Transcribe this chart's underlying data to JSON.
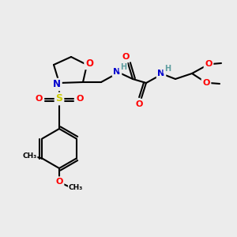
{
  "bg_color": "#ececec",
  "bond_color": "#000000",
  "atom_colors": {
    "O": "#ff0000",
    "N": "#0000cd",
    "S": "#cccc00",
    "H": "#5f9ea0",
    "C": "#000000"
  }
}
